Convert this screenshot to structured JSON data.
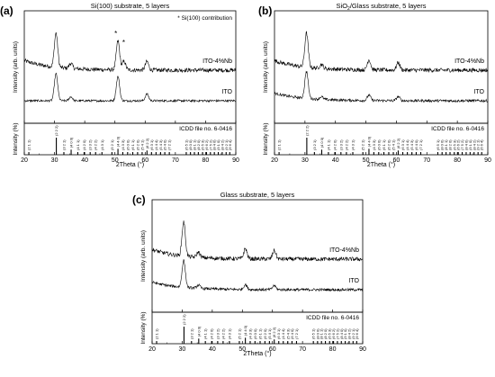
{
  "chart_data": [
    {
      "type": "line",
      "panel_label": "(a)",
      "title": "Si(100) substrate, 5 layers",
      "annotation": "* Si(100) contribution",
      "xlabel": "2Theta (°)",
      "ylabel_top": "Intensity (arb. units)",
      "ylabel_bottom": "Intensity (%)",
      "reference_label": "ICDD file no. 6-0416",
      "xlim": [
        20,
        90
      ],
      "xticks": [
        20,
        30,
        40,
        50,
        60,
        70,
        80,
        90
      ],
      "grid": false,
      "series": [
        {
          "name": "ITO-4%Nb",
          "peaks": [
            {
              "x": 30.5,
              "h": 1.0
            },
            {
              "x": 35.4,
              "h": 0.15
            },
            {
              "x": 51.0,
              "h": 0.85
            },
            {
              "x": 53.0,
              "h": 0.25
            },
            {
              "x": 60.6,
              "h": 0.25
            }
          ],
          "noise": 0.06,
          "bg": "decay"
        },
        {
          "name": "ITO",
          "peaks": [
            {
              "x": 30.5,
              "h": 1.0
            },
            {
              "x": 35.4,
              "h": 0.15
            },
            {
              "x": 51.0,
              "h": 0.9
            },
            {
              "x": 60.6,
              "h": 0.25
            }
          ],
          "noise": 0.04,
          "bg": "flat"
        }
      ],
      "peak_markers": [
        {
          "x": 50.3,
          "label": "*"
        },
        {
          "x": 52.9,
          "label": "*"
        }
      ]
    },
    {
      "type": "line",
      "panel_label": "(b)",
      "title_main": "SiO",
      "title_sub": "2",
      "title_rest": "/Glass substrate, 5 layers",
      "xlabel": "2Theta (°)",
      "ylabel_top": "Intensity (arb. units)",
      "ylabel_bottom": "Intensity (%)",
      "reference_label": "ICDD file no. 6-0416",
      "xlim": [
        20,
        90
      ],
      "xticks": [
        20,
        30,
        40,
        50,
        60,
        70,
        80,
        90
      ],
      "grid": false,
      "series": [
        {
          "name": "ITO-4%Nb",
          "peaks": [
            {
              "x": 30.5,
              "h": 1.0
            },
            {
              "x": 35.4,
              "h": 0.12
            },
            {
              "x": 51.0,
              "h": 0.3
            },
            {
              "x": 60.6,
              "h": 0.22
            }
          ],
          "noise": 0.06,
          "bg": "decay"
        },
        {
          "name": "ITO",
          "peaks": [
            {
              "x": 30.5,
              "h": 1.0
            },
            {
              "x": 35.4,
              "h": 0.1
            },
            {
              "x": 51.0,
              "h": 0.2
            },
            {
              "x": 60.6,
              "h": 0.15
            }
          ],
          "noise": 0.05,
          "bg": "decay"
        }
      ]
    },
    {
      "type": "line",
      "panel_label": "(c)",
      "title": "Glass substrate, 5 layers",
      "xlabel": "2Theta (°)",
      "ylabel_top": "Intensity (arb. units)",
      "ylabel_bottom": "Intensity (%)",
      "reference_label": "ICDD file no. 6-0416",
      "xlim": [
        20,
        90
      ],
      "xticks": [
        20,
        30,
        40,
        50,
        60,
        70,
        80,
        90
      ],
      "grid": false,
      "series": [
        {
          "name": "ITO-4%Nb",
          "peaks": [
            {
              "x": 30.5,
              "h": 1.0
            },
            {
              "x": 35.4,
              "h": 0.15
            },
            {
              "x": 51.0,
              "h": 0.3
            },
            {
              "x": 60.6,
              "h": 0.25
            }
          ],
          "noise": 0.06,
          "bg": "decay"
        },
        {
          "name": "ITO",
          "peaks": [
            {
              "x": 30.5,
              "h": 1.0
            },
            {
              "x": 35.4,
              "h": 0.12
            },
            {
              "x": 51.0,
              "h": 0.18
            },
            {
              "x": 60.6,
              "h": 0.15
            }
          ],
          "noise": 0.05,
          "bg": "decay"
        }
      ]
    }
  ],
  "reference_peaks": [
    {
      "x": 21.5,
      "h": 14,
      "label": "(2 1 1)"
    },
    {
      "x": 30.6,
      "h": 100,
      "label": "(2 2 2)"
    },
    {
      "x": 33.1,
      "h": 3,
      "label": "(3 2 1)"
    },
    {
      "x": 35.5,
      "h": 30,
      "label": "(4 0 0)"
    },
    {
      "x": 37.7,
      "h": 7,
      "label": "(4 1 1)"
    },
    {
      "x": 39.8,
      "h": 2,
      "label": "(4 2 0)"
    },
    {
      "x": 41.8,
      "h": 6,
      "label": "(3 3 2)"
    },
    {
      "x": 43.6,
      "h": 2,
      "label": "(4 2 2)"
    },
    {
      "x": 45.7,
      "h": 8,
      "label": "(4 3 1)"
    },
    {
      "x": 49.0,
      "h": 2,
      "label": "(5 2 1)"
    },
    {
      "x": 51.0,
      "h": 35,
      "label": "(4 4 0)"
    },
    {
      "x": 52.6,
      "h": 3,
      "label": "(4 3 3)"
    },
    {
      "x": 54.2,
      "h": 2,
      "label": "(6 0 0)"
    },
    {
      "x": 55.9,
      "h": 3,
      "label": "(6 1 1)"
    },
    {
      "x": 57.5,
      "h": 2,
      "label": "(6 2 0)"
    },
    {
      "x": 59.0,
      "h": 2,
      "label": "(5 4 1)"
    },
    {
      "x": 60.6,
      "h": 25,
      "label": "(6 2 2)"
    },
    {
      "x": 62.1,
      "h": 4,
      "label": "(6 3 1)"
    },
    {
      "x": 63.6,
      "h": 3,
      "label": "(4 4 4)"
    },
    {
      "x": 65.1,
      "h": 2,
      "label": "(5 4 3)"
    },
    {
      "x": 66.5,
      "h": 3,
      "label": "(6 4 0)"
    },
    {
      "x": 68.0,
      "h": 2,
      "label": "(7 2 1)"
    },
    {
      "x": 73.6,
      "h": 2,
      "label": "(6 5 1)"
    },
    {
      "x": 75.0,
      "h": 3,
      "label": "(8 0 0)"
    },
    {
      "x": 76.3,
      "h": 2,
      "label": "(8 1 1)"
    },
    {
      "x": 77.6,
      "h": 3,
      "label": "(8 2 0)"
    },
    {
      "x": 79.0,
      "h": 3,
      "label": "(6 5 3)"
    },
    {
      "x": 80.3,
      "h": 2,
      "label": "(6 6 2)"
    },
    {
      "x": 81.6,
      "h": 2,
      "label": "(7 5 2)"
    },
    {
      "x": 82.9,
      "h": 3,
      "label": "(8 4 0)"
    },
    {
      "x": 84.2,
      "h": 2,
      "label": "(9 1 0)"
    },
    {
      "x": 85.5,
      "h": 2,
      "label": "(8 4 2)"
    },
    {
      "x": 86.8,
      "h": 2,
      "label": "(9 2 1)"
    },
    {
      "x": 88.0,
      "h": 2,
      "label": "(6 6 4)"
    }
  ]
}
